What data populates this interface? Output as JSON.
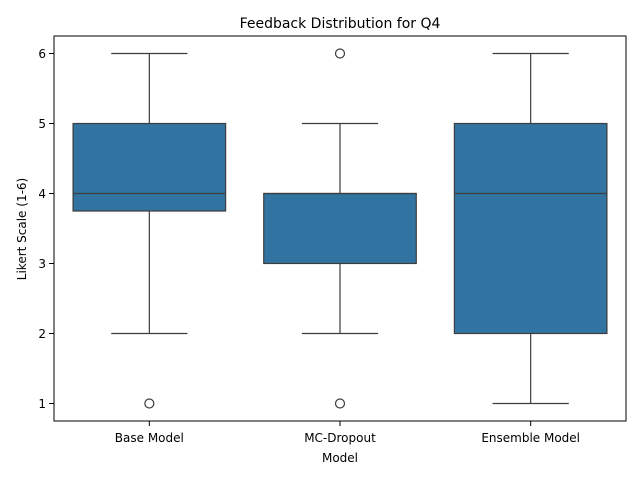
{
  "chart_data": {
    "type": "box",
    "title": "Feedback Distribution for Q4",
    "xlabel": "Model",
    "ylabel": "Likert Scale (1-6)",
    "ylim": [
      0.75,
      6.25
    ],
    "yticks": [
      1,
      2,
      3,
      4,
      5,
      6
    ],
    "grid": false,
    "legend": "none",
    "colors": {
      "box": "#3274a1",
      "line": "#3d3d3d"
    },
    "categories": [
      "Base Model",
      "MC-Dropout",
      "Ensemble Model"
    ],
    "boxes": [
      {
        "category": "Base Model",
        "whisker_low": 2,
        "q1": 3.75,
        "median": 4,
        "q3": 5,
        "whisker_high": 6,
        "outliers": [
          1
        ]
      },
      {
        "category": "MC-Dropout",
        "whisker_low": 2,
        "q1": 3,
        "median": 4,
        "q3": 4,
        "whisker_high": 5,
        "outliers": [
          1,
          6
        ]
      },
      {
        "category": "Ensemble Model",
        "whisker_low": 1,
        "q1": 2,
        "median": 4,
        "q3": 5,
        "whisker_high": 6,
        "outliers": []
      }
    ]
  }
}
